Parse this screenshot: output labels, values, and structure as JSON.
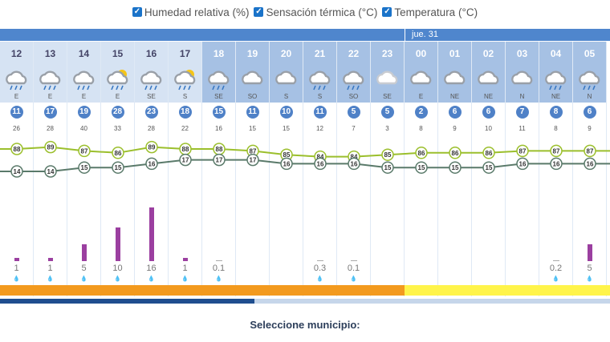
{
  "legend": {
    "humedad": "Humedad relativa (%)",
    "sensacion": "Sensación térmica (°C)",
    "temperatura": "Temperatura (°C)"
  },
  "day_label": "jue. 31",
  "hours": [
    {
      "hour": "12",
      "sky": "rain",
      "dir": "E",
      "wind": "11",
      "gust": "26",
      "hum": 88,
      "temp": 14,
      "precip": "1",
      "bar": 1
    },
    {
      "hour": "13",
      "sky": "rain",
      "dir": "E",
      "wind": "17",
      "gust": "28",
      "hum": 89,
      "temp": 14,
      "precip": "1",
      "bar": 1
    },
    {
      "hour": "14",
      "sky": "rain",
      "dir": "E",
      "wind": "19",
      "gust": "40",
      "hum": 87,
      "temp": 15,
      "precip": "5",
      "bar": 5
    },
    {
      "hour": "15",
      "sky": "sun-rain",
      "dir": "E",
      "wind": "28",
      "gust": "33",
      "hum": 86,
      "temp": 15,
      "precip": "10",
      "bar": 10
    },
    {
      "hour": "16",
      "sky": "rain",
      "dir": "SE",
      "wind": "23",
      "gust": "28",
      "hum": 89,
      "temp": 16,
      "precip": "16",
      "bar": 16
    },
    {
      "hour": "17",
      "sky": "sun-rain",
      "dir": "S",
      "wind": "18",
      "gust": "22",
      "hum": 88,
      "temp": 17,
      "precip": "1",
      "bar": 1
    },
    {
      "hour": "18",
      "sky": "rain",
      "dir": "SE",
      "wind": "15",
      "gust": "16",
      "hum": 88,
      "temp": 17,
      "precip": "0.1",
      "bar": 0.1
    },
    {
      "hour": "19",
      "sky": "cloud",
      "dir": "SO",
      "wind": "11",
      "gust": "15",
      "hum": 87,
      "temp": 17,
      "precip": "",
      "bar": 0
    },
    {
      "hour": "20",
      "sky": "cloud",
      "dir": "S",
      "wind": "10",
      "gust": "15",
      "hum": 85,
      "temp": 16,
      "precip": "",
      "bar": 0
    },
    {
      "hour": "21",
      "sky": "rain",
      "dir": "S",
      "wind": "11",
      "gust": "12",
      "hum": 84,
      "temp": 16,
      "precip": "0.3",
      "bar": 0.3
    },
    {
      "hour": "22",
      "sky": "rain",
      "dir": "SO",
      "wind": "5",
      "gust": "7",
      "hum": 84,
      "temp": 16,
      "precip": "0.1",
      "bar": 0.1
    },
    {
      "hour": "23",
      "sky": "cloud-light",
      "dir": "SE",
      "wind": "5",
      "gust": "3",
      "hum": 85,
      "temp": 15,
      "precip": "",
      "bar": 0
    },
    {
      "hour": "00",
      "sky": "cloud",
      "dir": "E",
      "wind": "2",
      "gust": "8",
      "hum": 86,
      "temp": 15,
      "precip": "",
      "bar": 0
    },
    {
      "hour": "01",
      "sky": "cloud",
      "dir": "NE",
      "wind": "6",
      "gust": "9",
      "hum": 86,
      "temp": 15,
      "precip": "",
      "bar": 0
    },
    {
      "hour": "02",
      "sky": "cloud",
      "dir": "NE",
      "wind": "6",
      "gust": "10",
      "hum": 86,
      "temp": 15,
      "precip": "",
      "bar": 0
    },
    {
      "hour": "03",
      "sky": "cloud",
      "dir": "N",
      "wind": "7",
      "gust": "11",
      "hum": 87,
      "temp": 16,
      "precip": "",
      "bar": 0
    },
    {
      "hour": "04",
      "sky": "rain",
      "dir": "NE",
      "wind": "8",
      "gust": "8",
      "hum": 87,
      "temp": 16,
      "precip": "0.2",
      "bar": 0.2
    },
    {
      "hour": "05",
      "sky": "rain",
      "dir": "N",
      "wind": "6",
      "gust": "9",
      "hum": 87,
      "temp": 16,
      "precip": "5",
      "bar": 5
    }
  ],
  "colors": {
    "humidity_line": "#9bbf2c",
    "temperature_line": "#5a7a6a",
    "precip_bar": "#9b3fa0",
    "band_orange": "#f39a1e",
    "band_yellow": "#fff44a",
    "wind_badge": "#4f81c7"
  },
  "footer": {
    "select_title": "Seleccione municipio:"
  }
}
